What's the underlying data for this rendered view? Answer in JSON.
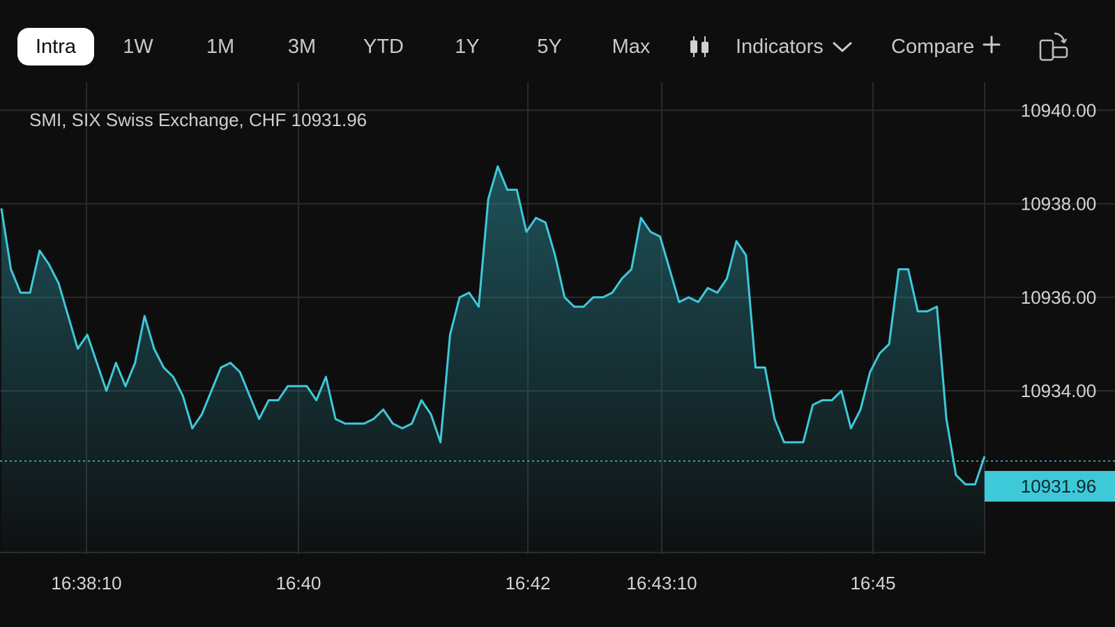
{
  "toolbar": {
    "ranges": [
      "Intra",
      "1W",
      "1M",
      "3M",
      "YTD",
      "1Y",
      "5Y",
      "Max"
    ],
    "active_range": "Intra",
    "chart_type_icon": "candlestick-icon",
    "indicators_label": "Indicators",
    "indicators_icon": "chevron-down-icon",
    "compare_label": "Compare",
    "compare_icon": "plus-icon",
    "rotate_icon": "rotate-device-icon"
  },
  "colors": {
    "background": "#0e0e0f",
    "line": "#3ec9d9",
    "grid": "#2a2a2c",
    "price_tag": "#3ec9d9"
  },
  "chart_data": {
    "type": "area",
    "title": "SMI, SIX Swiss Exchange, CHF 10931.96",
    "x_ticks": [
      "16:38:10",
      "16:40",
      "16:42",
      "16:43:10",
      "16:45"
    ],
    "y_ticks": [
      10940.0,
      10938.0,
      10936.0,
      10934.0
    ],
    "y_tick_labels": [
      "10940.00",
      "10938.00",
      "10936.00",
      "10934.00"
    ],
    "ylim": [
      10930.5,
      10940.6
    ],
    "last_price": 10931.96,
    "last_price_label": "10931.96",
    "reference_line": 10932.5,
    "grid": true,
    "series": [
      {
        "values": [
          10937.9,
          10936.6,
          10936.1,
          10936.1,
          10937.0,
          10936.7,
          10936.3,
          10935.6,
          10934.9,
          10935.2,
          10934.6,
          10934.0,
          10934.6,
          10934.1,
          10934.6,
          10935.6,
          10934.9,
          10934.5,
          10934.3,
          10933.9,
          10933.2,
          10933.5,
          10934.0,
          10934.5,
          10934.6,
          10934.4,
          10933.9,
          10933.4,
          10933.8,
          10933.8,
          10934.1,
          10934.1,
          10934.1,
          10933.8,
          10934.3,
          10933.4,
          10933.3,
          10933.3,
          10933.3,
          10933.4,
          10933.6,
          10933.3,
          10933.2,
          10933.3,
          10933.8,
          10933.5,
          10932.9,
          10935.2,
          10936.0,
          10936.1,
          10935.8,
          10938.1,
          10938.8,
          10938.3,
          10938.3,
          10937.4,
          10937.7,
          10937.6,
          10936.9,
          10936.0,
          10935.8,
          10935.8,
          10936.0,
          10936.0,
          10936.1,
          10936.4,
          10936.6,
          10937.7,
          10937.4,
          10937.3,
          10936.6,
          10935.9,
          10936.0,
          10935.9,
          10936.2,
          10936.1,
          10936.4,
          10937.2,
          10936.9,
          10934.5,
          10934.5,
          10933.4,
          10932.9,
          10932.9,
          10932.9,
          10933.7,
          10933.8,
          10933.8,
          10934.0,
          10933.2,
          10933.6,
          10934.4,
          10934.8,
          10935.0,
          10936.6,
          10936.6,
          10935.7,
          10935.7,
          10935.8,
          10933.4,
          10932.2,
          10932.0,
          10932.0,
          10932.6
        ]
      }
    ]
  }
}
